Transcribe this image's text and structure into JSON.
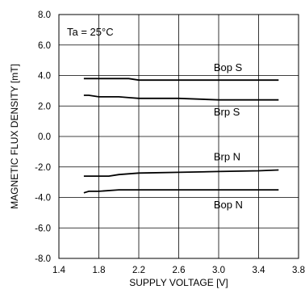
{
  "chart_data": {
    "type": "line",
    "annotation": "Ta = 25°C",
    "xlabel": "SUPPLY VOLTAGE [V]",
    "ylabel": "MAGNETIC FLUX DENSITY [mT]",
    "xlim": [
      1.4,
      3.8
    ],
    "ylim": [
      -8.0,
      8.0
    ],
    "x_ticks": [
      1.4,
      1.8,
      2.2,
      2.6,
      3.0,
      3.4,
      3.8
    ],
    "x_tick_labels": [
      "1.4",
      "1.8",
      "2.2",
      "2.6",
      "3.0",
      "3.4",
      "3.8"
    ],
    "y_ticks": [
      8.0,
      6.0,
      4.0,
      2.0,
      0.0,
      -2.0,
      -4.0,
      -6.0,
      -8.0
    ],
    "y_tick_labels": [
      "8.0",
      "6.0",
      "4.0",
      "2.0",
      "0.0",
      "-2.0",
      "-4.0",
      "-6.0",
      "-8.0"
    ],
    "grid": true,
    "series": [
      {
        "name": "Bop S",
        "x": [
          1.65,
          1.8,
          2.0,
          2.1,
          2.2,
          2.6,
          3.0,
          3.4,
          3.6
        ],
        "y": [
          3.8,
          3.8,
          3.8,
          3.8,
          3.7,
          3.7,
          3.7,
          3.7,
          3.7
        ]
      },
      {
        "name": "Brp S",
        "x": [
          1.65,
          1.7,
          1.8,
          2.0,
          2.1,
          2.2,
          2.6,
          3.0,
          3.4,
          3.6
        ],
        "y": [
          2.7,
          2.7,
          2.6,
          2.6,
          2.55,
          2.5,
          2.5,
          2.4,
          2.4,
          2.4
        ]
      },
      {
        "name": "Brp N",
        "x": [
          1.65,
          1.8,
          1.9,
          2.0,
          2.2,
          2.6,
          3.0,
          3.4,
          3.6
        ],
        "y": [
          -2.6,
          -2.6,
          -2.6,
          -2.5,
          -2.4,
          -2.35,
          -2.3,
          -2.25,
          -2.2
        ]
      },
      {
        "name": "Bop N",
        "x": [
          1.65,
          1.7,
          1.8,
          2.0,
          2.2,
          2.6,
          3.0,
          3.4,
          3.6
        ],
        "y": [
          -3.7,
          -3.6,
          -3.6,
          -3.5,
          -3.5,
          -3.5,
          -3.5,
          -3.5,
          -3.5
        ]
      }
    ],
    "series_labels": [
      {
        "name": "Bop S",
        "x": 2.95,
        "y": 4.5
      },
      {
        "name": "Brp S",
        "x": 2.95,
        "y": 1.6
      },
      {
        "name": "Brp N",
        "x": 2.95,
        "y": -1.35
      },
      {
        "name": "Bop N",
        "x": 2.95,
        "y": -4.5
      }
    ]
  }
}
